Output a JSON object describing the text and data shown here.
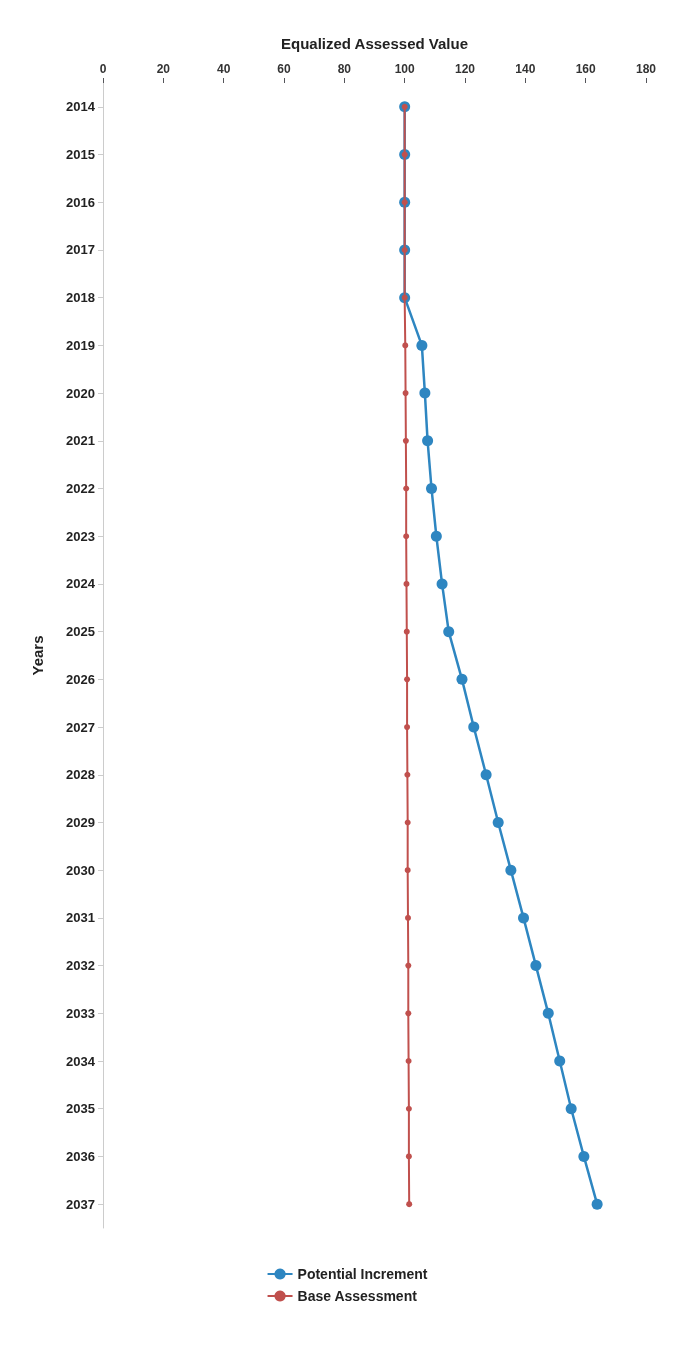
{
  "chart_data": {
    "type": "line",
    "orientation": "horizontal",
    "xlabel": "Equalized Assessed Value",
    "ylabel": "Years",
    "categories": [
      "2014",
      "2015",
      "2016",
      "2017",
      "2018",
      "2019",
      "2020",
      "2021",
      "2022",
      "2023",
      "2024",
      "2025",
      "2026",
      "2027",
      "2028",
      "2029",
      "2030",
      "2031",
      "2032",
      "2033",
      "2034",
      "2035",
      "2036",
      "2037"
    ],
    "series": [
      {
        "name": "Potential Increment",
        "color": "#2e86c1",
        "marker": "circle",
        "values": [
          100,
          100,
          100,
          100,
          100,
          105.7,
          106.7,
          107.6,
          108.9,
          110.5,
          112.4,
          114.6,
          119,
          122.9,
          127,
          131,
          135.2,
          139.4,
          143.5,
          147.6,
          151.4,
          155.2,
          159.4,
          163.8
        ]
      },
      {
        "name": "Base Assessment",
        "color": "#c0504d",
        "marker": "circle",
        "values": [
          100,
          100,
          100,
          100,
          100,
          100.2,
          100.3,
          100.4,
          100.5,
          100.5,
          100.6,
          100.7,
          100.8,
          100.8,
          100.9,
          101,
          101,
          101.1,
          101.2,
          101.2,
          101.3,
          101.4,
          101.4,
          101.5
        ]
      }
    ],
    "xlim": [
      0,
      180
    ],
    "xticks": [
      0,
      20,
      40,
      60,
      80,
      100,
      120,
      140,
      160,
      180
    ],
    "grid": false,
    "legend": "bottom"
  }
}
